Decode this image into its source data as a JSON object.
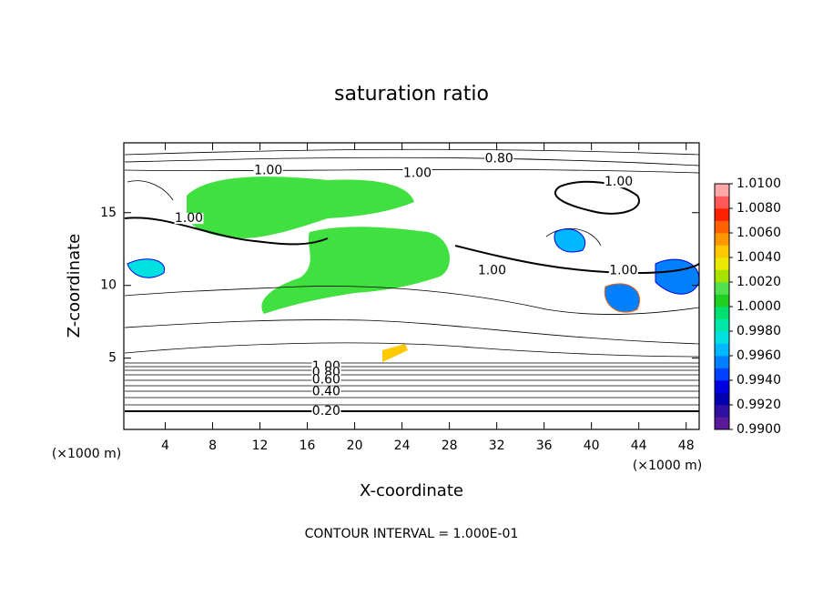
{
  "chart_data": {
    "type": "contour",
    "title": "saturation ratio",
    "x_label": "X-coordinate",
    "y_label": "Z-coordinate",
    "x_unit": "(×1000 m)",
    "note": "CONTOUR INTERVAL = 1.000E-01",
    "xlim": [
      0.5,
      49.1
    ],
    "ylim": [
      0.1,
      19.8
    ],
    "xticks": [
      4,
      8,
      12,
      16,
      20,
      24,
      28,
      32,
      36,
      40,
      44,
      48
    ],
    "yticks": [
      5,
      10,
      15
    ],
    "colorbar": {
      "lim": [
        0.99,
        1.01
      ],
      "ticks": [
        {
          "value": 0.99,
          "label": "0.9900"
        },
        {
          "value": 0.992,
          "label": "0.9920"
        },
        {
          "value": 0.994,
          "label": "0.9940"
        },
        {
          "value": 0.996,
          "label": "0.9960"
        },
        {
          "value": 0.998,
          "label": "0.9980"
        },
        {
          "value": 1.0,
          "label": "1.0000"
        },
        {
          "value": 1.002,
          "label": "1.0020"
        },
        {
          "value": 1.004,
          "label": "1.0040"
        },
        {
          "value": 1.006,
          "label": "1.0060"
        },
        {
          "value": 1.008,
          "label": "1.0080"
        },
        {
          "value": 1.01,
          "label": "1.0100"
        }
      ],
      "colors": [
        "#5a1a9a",
        "#3010a0",
        "#0000b0",
        "#0000e0",
        "#0040ff",
        "#0080ff",
        "#00b8ff",
        "#00e0e0",
        "#00e8a8",
        "#00e070",
        "#20d020",
        "#50e050",
        "#a8e000",
        "#e8e800",
        "#ffc800",
        "#ff9800",
        "#ff6000",
        "#ff2000",
        "#ff5858",
        "#ffa8a8"
      ]
    },
    "contour_labels": [
      {
        "text": "1.00",
        "x": 12.7,
        "y": 17.9
      },
      {
        "text": "1.00",
        "x": 25.3,
        "y": 17.7
      },
      {
        "text": "0.80",
        "x": 32.2,
        "y": 18.7
      },
      {
        "text": "1.00",
        "x": 42.3,
        "y": 17.1
      },
      {
        "text": "1.00",
        "x": 31.6,
        "y": 11.0
      },
      {
        "text": "1.00",
        "x": 42.7,
        "y": 11.0
      },
      {
        "text": "1.00",
        "x": 6.0,
        "y": 14.6
      },
      {
        "text": "1.00",
        "x": 17.6,
        "y": 4.4
      },
      {
        "text": "0.80",
        "x": 17.6,
        "y": 4.0
      },
      {
        "text": "0.60",
        "x": 17.6,
        "y": 3.5
      },
      {
        "text": "0.40",
        "x": 17.6,
        "y": 2.7
      },
      {
        "text": "0.20",
        "x": 17.6,
        "y": 1.35
      }
    ]
  }
}
